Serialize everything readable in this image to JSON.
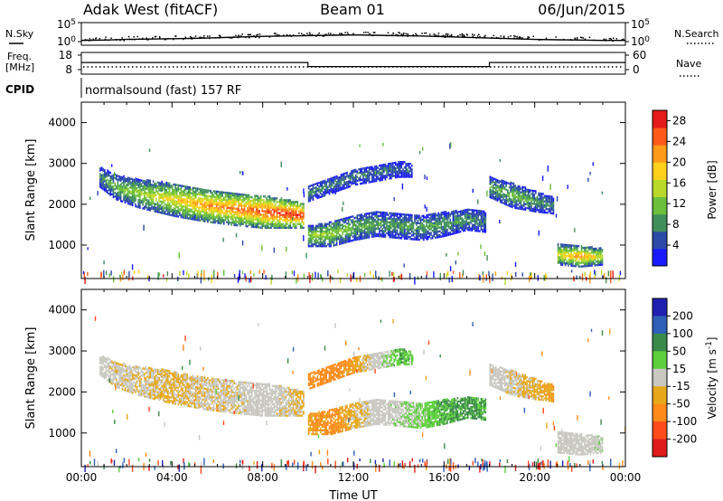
{
  "header": {
    "station": "Adak West (fitACF)",
    "beam": "Beam 01",
    "date": "06/Jun/2015"
  },
  "strip_labels": {
    "nsky": "N.Sky",
    "nsearch": "N.Search",
    "freq_line1": "Freq.",
    "freq_line2": "[MHz]",
    "nave": "Nave",
    "cpid": "CPID",
    "cpid_value": "normalsound (fast) 157 RF",
    "noise_ticks_left": [
      "10^5",
      "10^0"
    ],
    "noise_ticks_right": [
      "10^5",
      "10^0"
    ],
    "freq_ticks": [
      "18",
      "8"
    ],
    "nave_ticks": [
      "60",
      "0"
    ]
  },
  "colors": {
    "power_scale": [
      "#1a1aff",
      "#2b4aa8",
      "#3f8f5c",
      "#6bbf3a",
      "#b8d92a",
      "#ffd11a",
      "#ff9a1a",
      "#ff5a1a",
      "#e61a1a"
    ],
    "velocity_scale": [
      "#2020b0",
      "#2f5fb8",
      "#3a8a4a",
      "#5ccf3a",
      "#c8c8c0",
      "#e6a81a",
      "#ff8a1a",
      "#ff4a1a",
      "#e01a1a"
    ]
  },
  "chart_data": [
    {
      "type": "line",
      "name": "noise-strip",
      "x": [
        0,
        1,
        2,
        3,
        4,
        5,
        6,
        7,
        8,
        9,
        10,
        11,
        12,
        13,
        14,
        15,
        16,
        17,
        18,
        19,
        20,
        21,
        22,
        23,
        24
      ],
      "series": [
        {
          "values": [
            0.3,
            0.35,
            0.45,
            0.5,
            0.55,
            0.6,
            0.7,
            0.8,
            0.9,
            0.95,
            1.0,
            1.05,
            1.1,
            1.05,
            1.0,
            0.95,
            0.85,
            0.75,
            0.65,
            0.55,
            0.45,
            0.4,
            0.35,
            0.3,
            0.3
          ]
        }
      ],
      "ylim": [
        0,
        5
      ]
    },
    {
      "type": "line",
      "name": "frequency",
      "x": [
        0,
        10,
        10,
        18,
        18,
        24
      ],
      "series": [
        {
          "values": [
            13.5,
            13.5,
            11.0,
            11.0,
            13.5,
            13.5
          ]
        }
      ],
      "ylim": [
        8,
        18
      ]
    },
    {
      "type": "heatmap",
      "name": "power",
      "title": "",
      "xlabel": "",
      "ylabel": "Slant Range [km]",
      "xlim": [
        0,
        24
      ],
      "ylim": [
        180,
        4500
      ],
      "yticks": [
        1000,
        2000,
        3000,
        4000
      ],
      "colorbar": {
        "label": "Power [dB]",
        "ticks": [
          4,
          8,
          12,
          16,
          20,
          24,
          28
        ],
        "range": [
          0,
          30
        ]
      },
      "echo_bands": [
        {
          "hours": [
            0.8,
            1.5,
            2.5,
            4.0,
            5.5,
            7.0,
            8.0,
            9.0,
            9.8
          ],
          "center_km": [
            2700,
            2450,
            2300,
            2150,
            2000,
            1900,
            1850,
            1800,
            1750
          ],
          "width_km": [
            250,
            300,
            350,
            400,
            400,
            400,
            400,
            350,
            300
          ],
          "peak_power": [
            8,
            12,
            14,
            18,
            22,
            24,
            26,
            28,
            28
          ]
        },
        {
          "hours": [
            10.0,
            11.0,
            12.0,
            13.0,
            14.0,
            15.0,
            16.0,
            17.0,
            17.8
          ],
          "center_km": [
            1250,
            1300,
            1450,
            1550,
            1500,
            1450,
            1550,
            1650,
            1600
          ],
          "width_km": [
            250,
            300,
            300,
            300,
            300,
            300,
            300,
            250,
            250
          ],
          "peak_power": [
            14,
            14,
            12,
            10,
            10,
            10,
            10,
            9,
            8
          ]
        },
        {
          "hours": [
            10.0,
            11.0,
            12.0,
            13.0,
            14.0,
            14.6
          ],
          "center_km": [
            2300,
            2500,
            2700,
            2800,
            2900,
            2850
          ],
          "width_km": [
            200,
            200,
            200,
            200,
            200,
            150
          ],
          "peak_power": [
            8,
            8,
            7,
            7,
            6,
            6
          ]
        },
        {
          "hours": [
            18.0,
            19.0,
            20.0,
            20.8
          ],
          "center_km": [
            2450,
            2250,
            2100,
            2000
          ],
          "width_km": [
            250,
            300,
            250,
            200
          ],
          "peak_power": [
            10,
            12,
            10,
            8
          ]
        },
        {
          "hours": [
            21.0,
            22.0,
            23.0
          ],
          "center_km": [
            800,
            750,
            750
          ],
          "width_km": [
            250,
            250,
            200
          ],
          "peak_power": [
            18,
            22,
            16
          ]
        }
      ]
    },
    {
      "type": "heatmap",
      "name": "velocity",
      "title": "",
      "xlabel": "Time UT",
      "ylabel": "Slant Range [km]",
      "xlim": [
        0,
        24
      ],
      "ylim": [
        180,
        4500
      ],
      "xticks": [
        "00:00",
        "04:00",
        "08:00",
        "12:00",
        "16:00",
        "20:00",
        "00:00"
      ],
      "yticks": [
        1000,
        2000,
        3000,
        4000
      ],
      "colorbar": {
        "label": "Velocity [m s^-1]",
        "ticks": [
          200,
          100,
          50,
          15,
          -15,
          -50,
          -100,
          -200
        ]
      },
      "echo_bands": [
        {
          "hours": [
            0.8,
            1.5,
            2.5,
            4.0,
            5.5,
            7.0,
            8.0,
            9.0,
            9.8
          ],
          "center_km": [
            2700,
            2450,
            2300,
            2150,
            2000,
            1900,
            1850,
            1800,
            1750
          ],
          "width_km": [
            250,
            300,
            350,
            400,
            400,
            400,
            400,
            350,
            300
          ],
          "velocity": [
            0,
            -10,
            -10,
            -20,
            -10,
            -10,
            0,
            -10,
            -20
          ]
        },
        {
          "hours": [
            10.0,
            11.0,
            12.0,
            13.0,
            14.0,
            15.0,
            16.0,
            17.0,
            17.8
          ],
          "center_km": [
            1250,
            1300,
            1450,
            1550,
            1500,
            1450,
            1550,
            1650,
            1600
          ],
          "width_km": [
            250,
            300,
            300,
            300,
            300,
            300,
            300,
            250,
            250
          ],
          "velocity": [
            -30,
            -40,
            -20,
            0,
            10,
            20,
            30,
            40,
            30
          ]
        },
        {
          "hours": [
            10.0,
            11.0,
            12.0,
            13.0,
            14.0,
            14.6
          ],
          "center_km": [
            2300,
            2500,
            2700,
            2800,
            2900,
            2850
          ],
          "width_km": [
            200,
            200,
            200,
            200,
            200,
            150
          ],
          "velocity": [
            -40,
            -50,
            -30,
            0,
            30,
            20
          ]
        },
        {
          "hours": [
            18.0,
            19.0,
            20.0,
            20.8
          ],
          "center_km": [
            2450,
            2250,
            2100,
            2000
          ],
          "width_km": [
            250,
            300,
            250,
            200
          ],
          "velocity": [
            0,
            -10,
            -20,
            -30
          ]
        },
        {
          "hours": [
            21.0,
            22.0,
            23.0
          ],
          "center_km": [
            800,
            750,
            750
          ],
          "width_km": [
            250,
            250,
            200
          ],
          "velocity": [
            0,
            0,
            10
          ]
        }
      ]
    }
  ]
}
